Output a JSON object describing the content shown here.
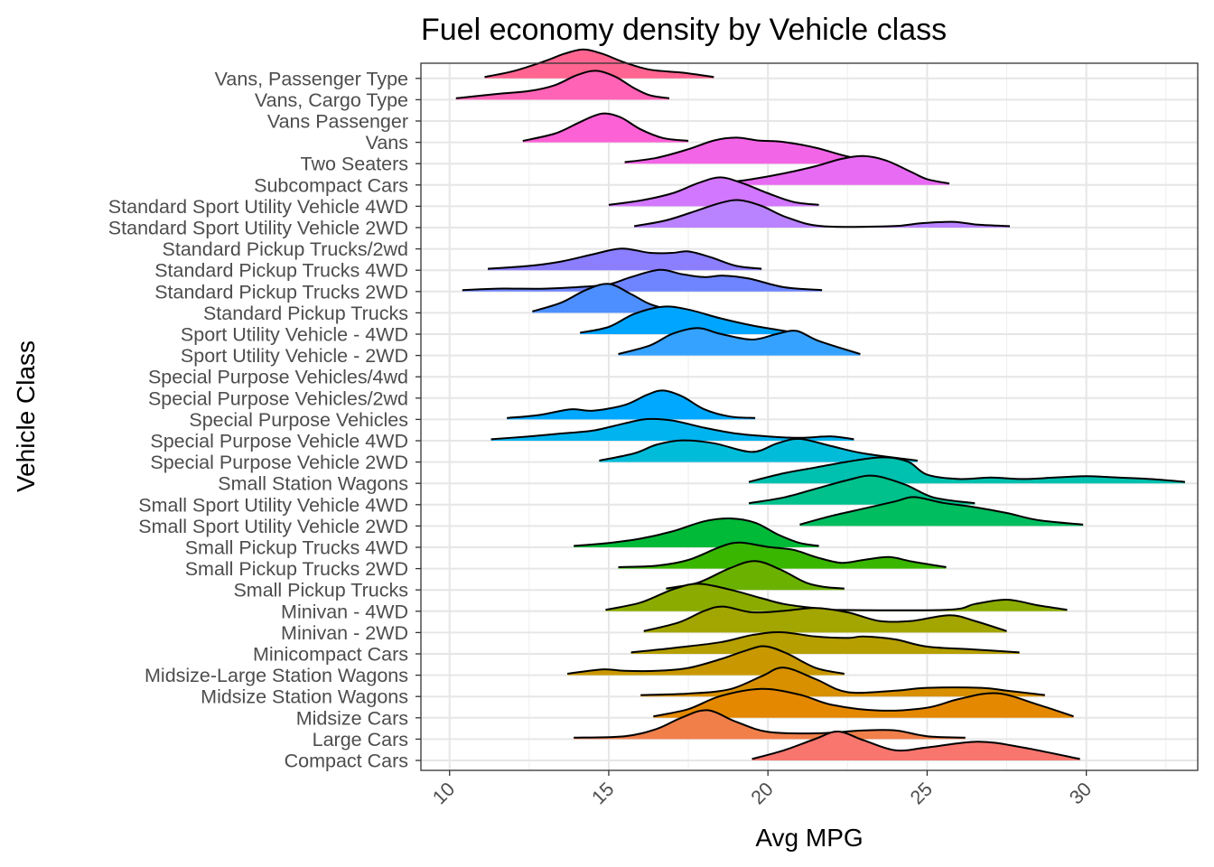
{
  "chart_data": {
    "type": "ridgeline",
    "title": "Fuel economy density by Vehicle class",
    "xlabel": "Avg MPG",
    "ylabel": "Vehicle Class",
    "xlim": [
      9.1,
      33.5
    ],
    "x_ticks": [
      10,
      15,
      20,
      25,
      30
    ],
    "grid": true,
    "legend": "none",
    "categories": [
      "Compact Cars",
      "Large Cars",
      "Midsize Cars",
      "Midsize Station Wagons",
      "Midsize-Large Station Wagons",
      "Minicompact Cars",
      "Minivan - 2WD",
      "Minivan - 4WD",
      "Small Pickup Trucks",
      "Small Pickup Trucks 2WD",
      "Small Pickup Trucks 4WD",
      "Small Sport Utility Vehicle 2WD",
      "Small Sport Utility Vehicle 4WD",
      "Small Station Wagons",
      "Special Purpose Vehicle 2WD",
      "Special Purpose Vehicle 4WD",
      "Special Purpose Vehicles",
      "Special Purpose Vehicles/2wd",
      "Special Purpose Vehicles/4wd",
      "Sport Utility Vehicle - 2WD",
      "Sport Utility Vehicle - 4WD",
      "Standard Pickup Trucks",
      "Standard Pickup Trucks 2WD",
      "Standard Pickup Trucks 4WD",
      "Standard Pickup Trucks/2wd",
      "Standard Sport Utility Vehicle 2WD",
      "Standard Sport Utility Vehicle 4WD",
      "Subcompact Cars",
      "Two Seaters",
      "Vans",
      "Vans Passenger",
      "Vans, Cargo Type",
      "Vans, Passenger Type"
    ],
    "series": [
      {
        "color": "#F8766D",
        "x": [
          19.5,
          20.5,
          21.5,
          22.2,
          23.0,
          24.0,
          25.0,
          26.6,
          28.0,
          29.8
        ],
        "y": [
          0.05,
          0.35,
          0.75,
          1.0,
          0.7,
          0.35,
          0.45,
          0.65,
          0.45,
          0.05
        ]
      },
      {
        "color": "#F07F4A",
        "x": [
          13.9,
          15.5,
          16.5,
          17.3,
          18.1,
          19.0,
          20.0,
          21.5,
          23.0,
          24.0,
          25.0,
          26.2
        ],
        "y": [
          0.05,
          0.1,
          0.35,
          0.75,
          1.0,
          0.6,
          0.25,
          0.2,
          0.3,
          0.3,
          0.1,
          0.05
        ]
      },
      {
        "color": "#E48800",
        "x": [
          16.4,
          17.5,
          18.5,
          19.8,
          21.0,
          22.0,
          23.5,
          25.0,
          26.0,
          27.2,
          28.5,
          29.6
        ],
        "y": [
          0.05,
          0.3,
          0.75,
          1.0,
          0.8,
          0.45,
          0.25,
          0.35,
          0.65,
          0.85,
          0.45,
          0.05
        ]
      },
      {
        "color": "#D89000",
        "x": [
          16.0,
          17.5,
          18.8,
          19.8,
          20.5,
          21.5,
          22.5,
          24.0,
          25.0,
          26.7,
          27.5,
          28.7
        ],
        "y": [
          0.05,
          0.1,
          0.25,
          0.7,
          1.0,
          0.6,
          0.15,
          0.2,
          0.3,
          0.3,
          0.2,
          0.05
        ]
      },
      {
        "color": "#C99800",
        "x": [
          13.7,
          14.8,
          15.5,
          16.5,
          17.5,
          18.5,
          19.3,
          19.9,
          20.6,
          21.5,
          22.4
        ],
        "y": [
          0.05,
          0.2,
          0.15,
          0.15,
          0.25,
          0.55,
          0.85,
          1.0,
          0.75,
          0.25,
          0.05
        ]
      },
      {
        "color": "#B69F00",
        "x": [
          15.7,
          17.0,
          18.5,
          19.5,
          20.4,
          21.5,
          22.5,
          23.0,
          24.0,
          25.0,
          26.5,
          27.9
        ],
        "y": [
          0.05,
          0.2,
          0.4,
          0.65,
          0.75,
          0.6,
          0.55,
          0.6,
          0.5,
          0.25,
          0.15,
          0.05
        ]
      },
      {
        "color": "#A3A500",
        "x": [
          16.1,
          17.2,
          18.0,
          18.6,
          19.5,
          20.5,
          21.5,
          22.5,
          23.5,
          24.5,
          25.7,
          26.5,
          27.5
        ],
        "y": [
          0.05,
          0.35,
          0.75,
          0.9,
          0.7,
          0.75,
          0.85,
          0.7,
          0.4,
          0.4,
          0.6,
          0.4,
          0.05
        ]
      },
      {
        "color": "#8CAB00",
        "x": [
          14.9,
          16.0,
          17.0,
          17.8,
          18.8,
          19.8,
          20.5,
          21.5,
          21.9,
          25.6,
          26.5,
          27.5,
          28.5,
          29.4
        ],
        "y": [
          0.05,
          0.3,
          0.75,
          0.95,
          0.75,
          0.45,
          0.25,
          0.1,
          0.05,
          0.05,
          0.25,
          0.4,
          0.2,
          0.05
        ]
      },
      {
        "color": "#6BB100",
        "x": [
          16.8,
          17.8,
          18.8,
          19.6,
          20.4,
          21.2,
          21.8,
          22.4
        ],
        "y": [
          0.05,
          0.25,
          0.75,
          1.0,
          0.7,
          0.25,
          0.1,
          0.05
        ]
      },
      {
        "color": "#39B600",
        "x": [
          15.3,
          16.5,
          17.5,
          18.5,
          19.1,
          20.0,
          20.8,
          21.5,
          22.3,
          23.0,
          23.8,
          24.5,
          25.6
        ],
        "y": [
          0.05,
          0.1,
          0.3,
          0.75,
          0.9,
          0.75,
          0.65,
          0.4,
          0.2,
          0.3,
          0.4,
          0.25,
          0.05
        ]
      },
      {
        "color": "#00BA38",
        "x": [
          13.9,
          15.0,
          16.0,
          17.0,
          18.0,
          18.8,
          19.6,
          20.3,
          21.0,
          21.6
        ],
        "y": [
          0.05,
          0.15,
          0.3,
          0.55,
          0.9,
          1.0,
          0.85,
          0.45,
          0.15,
          0.05
        ]
      },
      {
        "color": "#00BD5F",
        "x": [
          21.0,
          22.0,
          23.0,
          24.0,
          24.6,
          25.5,
          26.5,
          27.5,
          28.5,
          29.9
        ],
        "y": [
          0.05,
          0.35,
          0.6,
          0.85,
          1.0,
          0.8,
          0.65,
          0.45,
          0.2,
          0.05
        ]
      },
      {
        "color": "#00C08B",
        "x": [
          19.4,
          20.5,
          21.5,
          22.5,
          23.3,
          24.3,
          25.2,
          26.5
        ],
        "y": [
          0.05,
          0.25,
          0.55,
          0.85,
          1.0,
          0.7,
          0.25,
          0.05
        ]
      },
      {
        "color": "#00C0AF",
        "x": [
          19.4,
          20.5,
          21.5,
          22.5,
          23.6,
          24.4,
          25.0,
          26.0,
          27.0,
          28.0,
          29.0,
          30.0,
          31.0,
          32.0,
          33.1
        ],
        "y": [
          0.05,
          0.35,
          0.55,
          0.75,
          0.9,
          0.75,
          0.3,
          0.15,
          0.2,
          0.15,
          0.2,
          0.25,
          0.2,
          0.15,
          0.05
        ]
      },
      {
        "color": "#00BCD8",
        "x": [
          14.7,
          15.8,
          16.5,
          17.3,
          18.3,
          19.5,
          20.3,
          21.0,
          22.0,
          23.0,
          24.7
        ],
        "y": [
          0.05,
          0.3,
          0.6,
          0.75,
          0.65,
          0.35,
          0.65,
          0.8,
          0.55,
          0.3,
          0.05
        ]
      },
      {
        "color": "#00B4EF",
        "x": [
          11.3,
          12.5,
          13.5,
          14.5,
          15.5,
          16.2,
          17.0,
          18.0,
          19.0,
          20.0,
          21.0,
          22.0,
          22.7
        ],
        "y": [
          0.05,
          0.15,
          0.25,
          0.35,
          0.6,
          0.75,
          0.7,
          0.45,
          0.25,
          0.15,
          0.1,
          0.15,
          0.05
        ]
      },
      {
        "color": "#00A9FF",
        "x": [
          11.8,
          12.8,
          13.8,
          14.5,
          15.5,
          16.2,
          16.7,
          17.3,
          18.0,
          18.8,
          19.6
        ],
        "y": [
          0.05,
          0.15,
          0.35,
          0.3,
          0.5,
          0.85,
          1.0,
          0.8,
          0.35,
          0.1,
          0.05
        ]
      },
      {
        "color": "#2FA8F0",
        "x": [],
        "y": []
      },
      {
        "color": "#4A9FF5",
        "x": [],
        "y": []
      },
      {
        "color": "#35A2FF",
        "x": [
          15.3,
          16.3,
          17.0,
          17.8,
          18.5,
          19.5,
          20.3,
          20.9,
          21.6,
          22.9
        ],
        "y": [
          0.05,
          0.35,
          0.75,
          0.95,
          0.75,
          0.55,
          0.75,
          0.85,
          0.5,
          0.05
        ]
      },
      {
        "color": "#00A5FF",
        "x": [
          14.1,
          15.0,
          15.8,
          16.7,
          17.5,
          18.5,
          19.5,
          20.3,
          20.9
        ],
        "y": [
          0.05,
          0.25,
          0.7,
          0.95,
          0.85,
          0.55,
          0.3,
          0.15,
          0.05
        ]
      },
      {
        "color": "#4D8FFF",
        "x": [
          12.6,
          13.5,
          14.3,
          15.0,
          15.7,
          16.3,
          17.0,
          17.6
        ],
        "y": [
          0.05,
          0.35,
          0.8,
          1.0,
          0.65,
          0.3,
          0.1,
          0.05
        ]
      },
      {
        "color": "#6F85FF",
        "x": [
          10.4,
          11.5,
          12.0,
          13.0,
          14.0,
          15.0,
          15.7,
          16.6,
          17.3,
          18.0,
          18.6,
          19.4,
          20.5,
          21.7
        ],
        "y": [
          0.05,
          0.1,
          0.1,
          0.1,
          0.15,
          0.25,
          0.5,
          0.75,
          0.6,
          0.5,
          0.55,
          0.45,
          0.15,
          0.05
        ]
      },
      {
        "color": "#8B7EFF",
        "x": [
          11.2,
          12.5,
          13.5,
          14.5,
          15.4,
          16.3,
          17.0,
          17.5,
          18.2,
          19.0,
          19.8
        ],
        "y": [
          0.05,
          0.15,
          0.3,
          0.55,
          0.75,
          0.6,
          0.6,
          0.65,
          0.45,
          0.15,
          0.05
        ]
      },
      {
        "color": "#A07EFF",
        "x": [],
        "y": []
      },
      {
        "color": "#B983FF",
        "x": [
          15.8,
          16.8,
          17.8,
          18.5,
          19.1,
          19.8,
          20.6,
          21.7,
          23.9,
          24.8,
          25.8,
          26.6,
          27.6
        ],
        "y": [
          0.05,
          0.25,
          0.6,
          0.85,
          0.95,
          0.75,
          0.35,
          0.05,
          0.05,
          0.15,
          0.2,
          0.1,
          0.05
        ]
      },
      {
        "color": "#D277FF",
        "x": [
          15.0,
          16.0,
          17.0,
          17.8,
          18.5,
          19.2,
          20.0,
          20.8,
          21.6
        ],
        "y": [
          0.05,
          0.2,
          0.45,
          0.8,
          1.0,
          0.8,
          0.45,
          0.15,
          0.05
        ]
      },
      {
        "color": "#E76BF3",
        "x": [
          18.5,
          19.5,
          20.5,
          21.5,
          22.3,
          23.0,
          23.7,
          24.5,
          25.0,
          25.7
        ],
        "y": [
          0.05,
          0.2,
          0.4,
          0.65,
          0.9,
          1.0,
          0.85,
          0.45,
          0.2,
          0.05
        ]
      },
      {
        "color": "#F265E7",
        "x": [
          15.5,
          16.5,
          17.5,
          18.3,
          19.0,
          19.7,
          20.5,
          21.5,
          22.5,
          23.5
        ],
        "y": [
          0.05,
          0.2,
          0.5,
          0.8,
          0.9,
          0.8,
          0.75,
          0.55,
          0.25,
          0.05
        ]
      },
      {
        "color": "#FC61D5",
        "x": [
          12.3,
          13.3,
          14.0,
          14.5,
          14.9,
          15.4,
          16.0,
          16.7,
          17.5
        ],
        "y": [
          0.05,
          0.3,
          0.65,
          0.9,
          1.0,
          0.85,
          0.45,
          0.15,
          0.05
        ]
      },
      {
        "color": "#FF62C6",
        "x": [],
        "y": []
      },
      {
        "color": "#FF63B6",
        "x": [
          10.2,
          11.5,
          12.5,
          13.3,
          14.0,
          14.6,
          15.2,
          15.8,
          16.3,
          16.9
        ],
        "y": [
          0.05,
          0.2,
          0.3,
          0.5,
          0.85,
          1.0,
          0.8,
          0.4,
          0.15,
          0.05
        ]
      },
      {
        "color": "#FF6590",
        "x": [
          11.1,
          12.0,
          13.0,
          13.6,
          14.2,
          14.8,
          15.5,
          16.3,
          17.3,
          18.3
        ],
        "y": [
          0.05,
          0.25,
          0.6,
          0.85,
          1.0,
          0.85,
          0.55,
          0.3,
          0.2,
          0.05
        ]
      }
    ]
  }
}
